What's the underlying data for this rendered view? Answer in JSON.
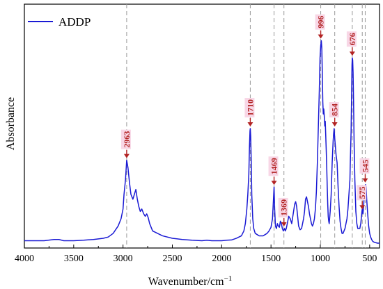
{
  "chart_data": {
    "type": "line",
    "title": "",
    "xlabel_main": "Wavenumber/cm",
    "xlabel_sup": "−1",
    "ylabel": "Absorbance",
    "xlim": [
      4000,
      400
    ],
    "x_reversed": true,
    "xticks": [
      4000,
      3500,
      3000,
      2500,
      2000,
      1500,
      1000,
      500
    ],
    "yticks_labeled": false,
    "grid": false,
    "legend_position": "top-left",
    "series": [
      {
        "name": "ADDP",
        "color": "#1a1ad4",
        "x": [
          4000,
          3800,
          3700,
          3650,
          3600,
          3500,
          3400,
          3300,
          3200,
          3150,
          3100,
          3050,
          3020,
          3000,
          2990,
          2975,
          2963,
          2950,
          2935,
          2920,
          2900,
          2885,
          2870,
          2855,
          2840,
          2825,
          2810,
          2800,
          2790,
          2775,
          2760,
          2745,
          2730,
          2720,
          2700,
          2600,
          2500,
          2400,
          2300,
          2200,
          2150,
          2100,
          2050,
          2000,
          1950,
          1900,
          1850,
          1800,
          1775,
          1760,
          1745,
          1735,
          1725,
          1718,
          1713,
          1710,
          1706,
          1700,
          1695,
          1685,
          1675,
          1660,
          1640,
          1620,
          1600,
          1580,
          1560,
          1540,
          1520,
          1500,
          1485,
          1475,
          1469,
          1463,
          1455,
          1445,
          1435,
          1425,
          1415,
          1405,
          1395,
          1385,
          1375,
          1369,
          1362,
          1355,
          1345,
          1335,
          1320,
          1305,
          1290,
          1275,
          1260,
          1250,
          1240,
          1230,
          1220,
          1205,
          1190,
          1180,
          1170,
          1160,
          1150,
          1140,
          1130,
          1120,
          1110,
          1100,
          1090,
          1080,
          1070,
          1060,
          1050,
          1040,
          1030,
          1020,
          1010,
          1003,
          996,
          990,
          985,
          980,
          975,
          970,
          965,
          960,
          955,
          950,
          945,
          940,
          935,
          930,
          925,
          920,
          915,
          910,
          900,
          890,
          880,
          870,
          865,
          860,
          854,
          848,
          840,
          830,
          820,
          810,
          800,
          790,
          780,
          770,
          760,
          750,
          740,
          730,
          720,
          710,
          700,
          695,
          688,
          682,
          679,
          676,
          672,
          668,
          663,
          658,
          650,
          640,
          630,
          620,
          610,
          600,
          590,
          583,
          577,
          575,
          572,
          568,
          563,
          557,
          552,
          548,
          545,
          541,
          536,
          530,
          520,
          510,
          500,
          490,
          480,
          470,
          460,
          450,
          440,
          430,
          420,
          410,
          400
        ],
        "y": [
          0.03,
          0.03,
          0.035,
          0.035,
          0.03,
          0.03,
          0.032,
          0.035,
          0.04,
          0.045,
          0.06,
          0.09,
          0.12,
          0.16,
          0.22,
          0.28,
          0.36,
          0.33,
          0.27,
          0.22,
          0.2,
          0.22,
          0.24,
          0.2,
          0.17,
          0.15,
          0.16,
          0.15,
          0.14,
          0.13,
          0.14,
          0.125,
          0.1,
          0.09,
          0.07,
          0.05,
          0.04,
          0.035,
          0.032,
          0.03,
          0.032,
          0.03,
          0.03,
          0.03,
          0.032,
          0.033,
          0.04,
          0.05,
          0.07,
          0.1,
          0.16,
          0.22,
          0.3,
          0.42,
          0.48,
          0.49,
          0.46,
          0.35,
          0.22,
          0.12,
          0.08,
          0.06,
          0.055,
          0.05,
          0.05,
          0.05,
          0.055,
          0.06,
          0.07,
          0.085,
          0.12,
          0.2,
          0.25,
          0.16,
          0.09,
          0.08,
          0.1,
          0.09,
          0.085,
          0.11,
          0.1,
          0.08,
          0.07,
          0.075,
          0.08,
          0.07,
          0.08,
          0.1,
          0.13,
          0.12,
          0.1,
          0.14,
          0.18,
          0.19,
          0.17,
          0.13,
          0.09,
          0.075,
          0.08,
          0.1,
          0.12,
          0.15,
          0.2,
          0.21,
          0.19,
          0.17,
          0.14,
          0.12,
          0.1,
          0.09,
          0.1,
          0.12,
          0.16,
          0.23,
          0.35,
          0.5,
          0.65,
          0.78,
          0.83,
          0.85,
          0.82,
          0.72,
          0.6,
          0.55,
          0.57,
          0.54,
          0.5,
          0.52,
          0.46,
          0.4,
          0.33,
          0.25,
          0.18,
          0.13,
          0.11,
          0.1,
          0.15,
          0.22,
          0.35,
          0.44,
          0.47,
          0.49,
          0.45,
          0.42,
          0.38,
          0.35,
          0.25,
          0.17,
          0.11,
          0.08,
          0.06,
          0.06,
          0.07,
          0.08,
          0.1,
          0.12,
          0.16,
          0.22,
          0.28,
          0.37,
          0.48,
          0.66,
          0.75,
          0.78,
          0.77,
          0.72,
          0.6,
          0.44,
          0.28,
          0.15,
          0.1,
          0.08,
          0.08,
          0.08,
          0.1,
          0.13,
          0.155,
          0.16,
          0.15,
          0.14,
          0.16,
          0.2,
          0.23,
          0.25,
          0.255,
          0.26,
          0.25,
          0.2,
          0.14,
          0.09,
          0.06,
          0.045,
          0.035,
          0.028,
          0.025,
          0.023,
          0.022,
          0.021,
          0.02,
          0.02,
          0.02
        ]
      }
    ],
    "peaks": [
      {
        "label": "2963",
        "x": 2963,
        "y": 0.36
      },
      {
        "label": "1710",
        "x": 1710,
        "y": 0.49
      },
      {
        "label": "1469",
        "x": 1469,
        "y": 0.25
      },
      {
        "label": "1369",
        "x": 1369,
        "y": 0.08
      },
      {
        "label": "996",
        "x": 996,
        "y": 0.85
      },
      {
        "label": "854",
        "x": 854,
        "y": 0.49
      },
      {
        "label": "676",
        "x": 676,
        "y": 0.78
      },
      {
        "label": "575",
        "x": 575,
        "y": 0.15
      },
      {
        "label": "545",
        "x": 545,
        "y": 0.26
      }
    ],
    "peak_label_color": "#b22222",
    "peak_label_bg": "#f8d7e6"
  }
}
